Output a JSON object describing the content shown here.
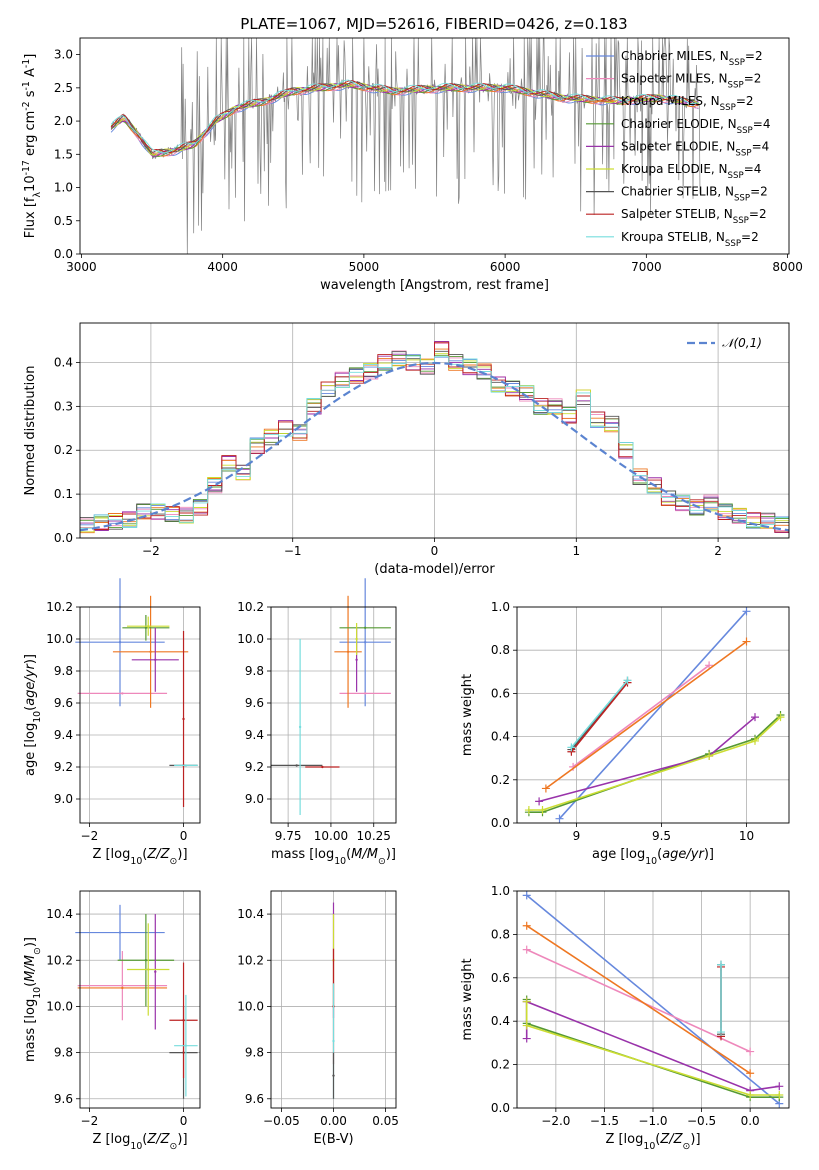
{
  "figure_title": "PLATE=1067, MJD=52616, FIBERID=0426, z=0.183",
  "chart_data": [
    {
      "id": "spectrum",
      "type": "line",
      "xlabel": "wavelength [Angstrom, rest frame]",
      "ylabel": "Flux [f$_\\lambda$10$^{-17}$ erg cm$^{-2}$ s$^{-1}$ A$^{-1}$]",
      "xlim": [
        2990,
        8010
      ],
      "ylim": [
        0,
        3.25
      ],
      "xticks": [
        3000,
        4000,
        5000,
        6000,
        7000,
        8000
      ],
      "yticks": [
        0.0,
        0.5,
        1.0,
        1.5,
        2.0,
        2.5,
        3.0
      ],
      "grid": false,
      "legend_position": "upper right",
      "data_color": "#808080",
      "data_wavelength_range": [
        3210,
        7380
      ],
      "continuum": {
        "x": [
          3210,
          3300,
          3400,
          3500,
          3650,
          3800,
          3950,
          4100,
          4300,
          4500,
          4700,
          4900,
          5200,
          5600,
          6000,
          6400,
          6800,
          7100,
          7380
        ],
        "y": [
          1.9,
          2.05,
          1.8,
          1.5,
          1.55,
          1.65,
          2.0,
          2.2,
          2.3,
          2.45,
          2.5,
          2.55,
          2.45,
          2.5,
          2.5,
          2.35,
          2.3,
          2.35,
          2.25
        ]
      },
      "series": [
        {
          "name": "Chabrier MILES, N$_{SSP}$=2",
          "color": "#6688dd"
        },
        {
          "name": "Salpeter MILES, N$_{SSP}$=2",
          "color": "#ee88bb"
        },
        {
          "name": "Kroupa MILES, N$_{SSP}$=2",
          "color": "#ee7722"
        },
        {
          "name": "Chabrier ELODIE, N$_{SSP}$=4",
          "color": "#559933"
        },
        {
          "name": "Salpeter ELODIE, N$_{SSP}$=4",
          "color": "#9933aa"
        },
        {
          "name": "Kroupa ELODIE, N$_{SSP}$=4",
          "color": "#ccdd33"
        },
        {
          "name": "Chabrier STELIB, N$_{SSP}$=2",
          "color": "#555555"
        },
        {
          "name": "Salpeter STELIB, N$_{SSP}$=2",
          "color": "#bb2222"
        },
        {
          "name": "Kroupa STELIB, N$_{SSP}$=2",
          "color": "#77dddd"
        }
      ]
    },
    {
      "id": "residual-histogram",
      "type": "line",
      "xlabel": "(data-model)/error",
      "ylabel": "Normed distribution",
      "xlim": [
        -2.5,
        2.5
      ],
      "ylim": [
        0,
        0.49
      ],
      "xticks": [
        -2,
        -1,
        0,
        1,
        2
      ],
      "yticks": [
        0.0,
        0.1,
        0.2,
        0.3,
        0.4
      ],
      "grid": true,
      "legend_position": "upper right",
      "legend": [
        "$\\mathcal{N}(0,1)$"
      ],
      "bin_edges": [
        -2.5,
        -2.4,
        -2.3,
        -2.2,
        -2.1,
        -2.0,
        -1.9,
        -1.8,
        -1.7,
        -1.6,
        -1.5,
        -1.4,
        -1.3,
        -1.2,
        -1.1,
        -1.0,
        -0.9,
        -0.8,
        -0.7,
        -0.6,
        -0.5,
        -0.4,
        -0.3,
        -0.2,
        -0.1,
        0.0,
        0.1,
        0.2,
        0.3,
        0.4,
        0.5,
        0.6,
        0.7,
        0.8,
        0.9,
        1.0,
        1.1,
        1.2,
        1.3,
        1.4,
        1.5,
        1.6,
        1.7,
        1.8,
        1.9,
        2.0,
        2.1,
        2.2,
        2.3,
        2.4,
        2.5
      ],
      "histogram": [
        0.03,
        0.035,
        0.038,
        0.042,
        0.06,
        0.06,
        0.055,
        0.052,
        0.07,
        0.12,
        0.17,
        0.15,
        0.21,
        0.23,
        0.25,
        0.24,
        0.3,
        0.34,
        0.36,
        0.37,
        0.38,
        0.4,
        0.41,
        0.4,
        0.39,
        0.43,
        0.4,
        0.39,
        0.38,
        0.35,
        0.34,
        0.33,
        0.3,
        0.3,
        0.28,
        0.32,
        0.27,
        0.26,
        0.2,
        0.14,
        0.12,
        0.09,
        0.08,
        0.07,
        0.08,
        0.06,
        0.05,
        0.04,
        0.04,
        0.03
      ],
      "gaussian": {
        "name": "N(0,1)",
        "mean": 0,
        "sigma": 1,
        "color": "#5b84d0"
      }
    },
    {
      "id": "age-vs-metallicity",
      "type": "scatter",
      "xlabel": "Z [log$_{10}$($Z/Z_\\odot$)]",
      "ylabel": "age  [log$_{10}$($age/yr$)]",
      "xlim": [
        -2.2,
        0.35
      ],
      "ylim": [
        8.85,
        10.2
      ],
      "xticks": [
        -2,
        0
      ],
      "yticks": [
        9.0,
        9.2,
        9.4,
        9.6,
        9.8,
        10.0,
        10.2
      ],
      "grid": true,
      "points": [
        {
          "series": 0,
          "x": -1.35,
          "y": 9.98,
          "xerr": 0.95,
          "yerr": 0.4
        },
        {
          "series": 1,
          "x": -1.3,
          "y": 9.66,
          "xerr": 0.95,
          "yerr": 0.0
        },
        {
          "series": 2,
          "x": -0.7,
          "y": 9.92,
          "xerr": 0.8,
          "yerr": 0.35
        },
        {
          "series": 3,
          "x": -0.8,
          "y": 10.07,
          "xerr": 0.5,
          "yerr": 0.08
        },
        {
          "series": 4,
          "x": -0.6,
          "y": 9.87,
          "xerr": 0.5,
          "yerr": 0.2
        },
        {
          "series": 5,
          "x": -0.75,
          "y": 10.08,
          "xerr": 0.45,
          "yerr": 0.06
        },
        {
          "series": 6,
          "x": 0.0,
          "y": 9.21,
          "xerr": 0.3,
          "yerr": 0.0
        },
        {
          "series": 7,
          "x": 0.0,
          "y": 9.5,
          "xerr": 0.0,
          "yerr": 0.55
        },
        {
          "series": 8,
          "x": 0.05,
          "y": 9.21,
          "xerr": 0.25,
          "yerr": 0.0
        }
      ]
    },
    {
      "id": "age-vs-mass",
      "type": "scatter",
      "xlabel": "mass [log$_{10}$($M/M_\\odot$)]",
      "ylabel": "",
      "xlim": [
        9.65,
        10.38
      ],
      "ylim": [
        8.85,
        10.2
      ],
      "xticks": [
        9.75,
        10.0,
        10.25
      ],
      "ticklabels": [
        "9.75",
        "10.00",
        "10.25"
      ],
      "yticks": [
        9.0,
        9.2,
        9.4,
        9.6,
        9.8,
        10.0,
        10.2
      ],
      "grid": true,
      "points": [
        {
          "series": 0,
          "x": 10.2,
          "y": 9.98,
          "xerr": 0.15,
          "yerr": 0.4
        },
        {
          "series": 1,
          "x": 10.2,
          "y": 9.66,
          "xerr": 0.15,
          "yerr": 0.0
        },
        {
          "series": 2,
          "x": 10.1,
          "y": 9.92,
          "xerr": 0.08,
          "yerr": 0.35
        },
        {
          "series": 3,
          "x": 10.2,
          "y": 10.07,
          "xerr": 0.15,
          "yerr": 0.0
        },
        {
          "series": 4,
          "x": 10.15,
          "y": 9.87,
          "xerr": 0.0,
          "yerr": 0.2
        },
        {
          "series": 5,
          "x": 10.15,
          "y": 10.0,
          "xerr": 0.0,
          "yerr": 0.1
        },
        {
          "series": 6,
          "x": 9.8,
          "y": 9.21,
          "xerr": 0.15,
          "yerr": 0.0
        },
        {
          "series": 7,
          "x": 9.95,
          "y": 9.2,
          "xerr": 0.1,
          "yerr": 0.0
        },
        {
          "series": 8,
          "x": 9.82,
          "y": 9.45,
          "xerr": 0.0,
          "yerr": 0.55
        }
      ]
    },
    {
      "id": "mass-weight-vs-age",
      "type": "line",
      "xlabel": "age  [log$_{10}$($age/yr$)]",
      "ylabel": "mass weight",
      "xlim": [
        8.65,
        10.25
      ],
      "ylim": [
        0,
        1.0
      ],
      "xticks": [
        9.0,
        9.5,
        10.0
      ],
      "yticks": [
        0.0,
        0.2,
        0.4,
        0.6,
        0.8,
        1.0
      ],
      "grid": true,
      "series": [
        {
          "series": 0,
          "x": [
            8.9,
            10.0
          ],
          "y": [
            0.02,
            0.98
          ]
        },
        {
          "series": 1,
          "x": [
            8.98,
            9.78
          ],
          "y": [
            0.26,
            0.73
          ]
        },
        {
          "series": 2,
          "x": [
            8.82,
            10.0
          ],
          "y": [
            0.16,
            0.84
          ]
        },
        {
          "series": 3,
          "x": [
            8.72,
            8.8,
            9.78,
            10.05,
            10.2
          ],
          "y": [
            0.05,
            0.05,
            0.32,
            0.39,
            0.5
          ]
        },
        {
          "series": 4,
          "x": [
            8.78,
            9.78,
            10.05
          ],
          "y": [
            0.1,
            0.31,
            0.49
          ]
        },
        {
          "series": 5,
          "x": [
            8.72,
            8.8,
            9.78,
            10.05,
            10.2
          ],
          "y": [
            0.06,
            0.06,
            0.31,
            0.38,
            0.49
          ]
        },
        {
          "series": 6,
          "x": [
            8.97,
            9.3
          ],
          "y": [
            0.34,
            0.66
          ]
        },
        {
          "series": 7,
          "x": [
            8.97,
            9.3
          ],
          "y": [
            0.33,
            0.65
          ]
        },
        {
          "series": 8,
          "x": [
            8.97,
            9.3
          ],
          "y": [
            0.35,
            0.66
          ]
        }
      ]
    },
    {
      "id": "mass-vs-metallicity",
      "type": "scatter",
      "xlabel": "Z [log$_{10}$($Z/Z_\\odot$)]",
      "ylabel": "mass [log$_{10}$($M/M_\\odot$)]",
      "xlim": [
        -2.2,
        0.35
      ],
      "ylim": [
        9.56,
        10.5
      ],
      "xticks": [
        -2,
        0
      ],
      "yticks": [
        9.6,
        9.8,
        10.0,
        10.2,
        10.4
      ],
      "grid": true,
      "points": [
        {
          "series": 0,
          "x": -1.35,
          "y": 10.32,
          "xerr": 0.95,
          "yerr": 0.12
        },
        {
          "series": 1,
          "x": -1.3,
          "y": 10.09,
          "xerr": 0.95,
          "yerr": 0.15
        },
        {
          "series": 2,
          "x": -1.3,
          "y": 10.08,
          "xerr": 0.95,
          "yerr": 0.0
        },
        {
          "series": 3,
          "x": -0.8,
          "y": 10.2,
          "xerr": 0.6,
          "yerr": 0.2
        },
        {
          "series": 4,
          "x": -0.6,
          "y": 10.15,
          "xerr": 0.0,
          "yerr": 0.25
        },
        {
          "series": 5,
          "x": -0.75,
          "y": 10.16,
          "xerr": 0.45,
          "yerr": 0.2
        },
        {
          "series": 6,
          "x": 0.0,
          "y": 9.8,
          "xerr": 0.3,
          "yerr": 0.2
        },
        {
          "series": 7,
          "x": 0.0,
          "y": 9.94,
          "xerr": 0.3,
          "yerr": 0.25
        },
        {
          "series": 8,
          "x": 0.05,
          "y": 9.83,
          "xerr": 0.25,
          "yerr": 0.22
        }
      ]
    },
    {
      "id": "mass-vs-extinction",
      "type": "scatter",
      "xlabel": "E(B-V)",
      "ylabel": "",
      "xlim": [
        -0.06,
        0.06
      ],
      "ylim": [
        9.56,
        10.5
      ],
      "xticks": [
        -0.05,
        0.0,
        0.05
      ],
      "ticklabels": [
        "−0.05",
        "0.00",
        "0.05"
      ],
      "yticks": [
        9.6,
        9.8,
        10.0,
        10.2,
        10.4
      ],
      "grid": true,
      "points": [
        {
          "series": 4,
          "x": 0.0,
          "y": 10.2,
          "xerr": 0,
          "yerr": 0.25
        },
        {
          "series": 5,
          "x": 0.0,
          "y": 10.2,
          "xerr": 0,
          "yerr": 0.2
        },
        {
          "series": 7,
          "x": 0.0,
          "y": 10.0,
          "xerr": 0,
          "yerr": 0.25
        },
        {
          "series": 8,
          "x": 0.0,
          "y": 9.85,
          "xerr": 0,
          "yerr": 0.25
        },
        {
          "series": 6,
          "x": 0.0,
          "y": 9.7,
          "xerr": 0,
          "yerr": 0.1
        }
      ]
    },
    {
      "id": "mass-weight-vs-metallicity",
      "type": "line",
      "xlabel": "Z [log$_{10}$($Z/Z_\\odot$)]",
      "ylabel": "mass weight",
      "xlim": [
        -2.4,
        0.4
      ],
      "ylim": [
        0,
        1.0
      ],
      "xticks": [
        -2.0,
        -1.5,
        -1.0,
        -0.5,
        0.0
      ],
      "ticklabels": [
        "−2.0",
        "−1.5",
        "−1.0",
        "−0.5",
        "0.0"
      ],
      "yticks": [
        0.0,
        0.2,
        0.4,
        0.6,
        0.8,
        1.0
      ],
      "grid": true,
      "series": [
        {
          "series": 0,
          "x": [
            -2.3,
            0.3
          ],
          "y": [
            0.98,
            0.02
          ]
        },
        {
          "series": 1,
          "x": [
            -2.3,
            0.0
          ],
          "y": [
            0.73,
            0.26
          ]
        },
        {
          "series": 2,
          "x": [
            -2.3,
            0.0
          ],
          "y": [
            0.84,
            0.16
          ]
        },
        {
          "series": 3,
          "x": [
            -2.3,
            -2.3,
            0.0,
            0.3
          ],
          "y": [
            0.5,
            0.39,
            0.05,
            0.05
          ]
        },
        {
          "series": 4,
          "x": [
            -2.3,
            -2.3,
            0.0,
            0.3
          ],
          "y": [
            0.32,
            0.49,
            0.08,
            0.1
          ]
        },
        {
          "series": 5,
          "x": [
            -2.3,
            -2.3,
            0.0,
            0.3
          ],
          "y": [
            0.49,
            0.38,
            0.06,
            0.06
          ]
        },
        {
          "series": 6,
          "x": [
            -0.3,
            -0.3
          ],
          "y": [
            0.66,
            0.34
          ]
        },
        {
          "series": 7,
          "x": [
            -0.3,
            -0.3
          ],
          "y": [
            0.65,
            0.33
          ]
        },
        {
          "series": 8,
          "x": [
            -0.3,
            -0.3
          ],
          "y": [
            0.66,
            0.35
          ]
        }
      ]
    }
  ]
}
